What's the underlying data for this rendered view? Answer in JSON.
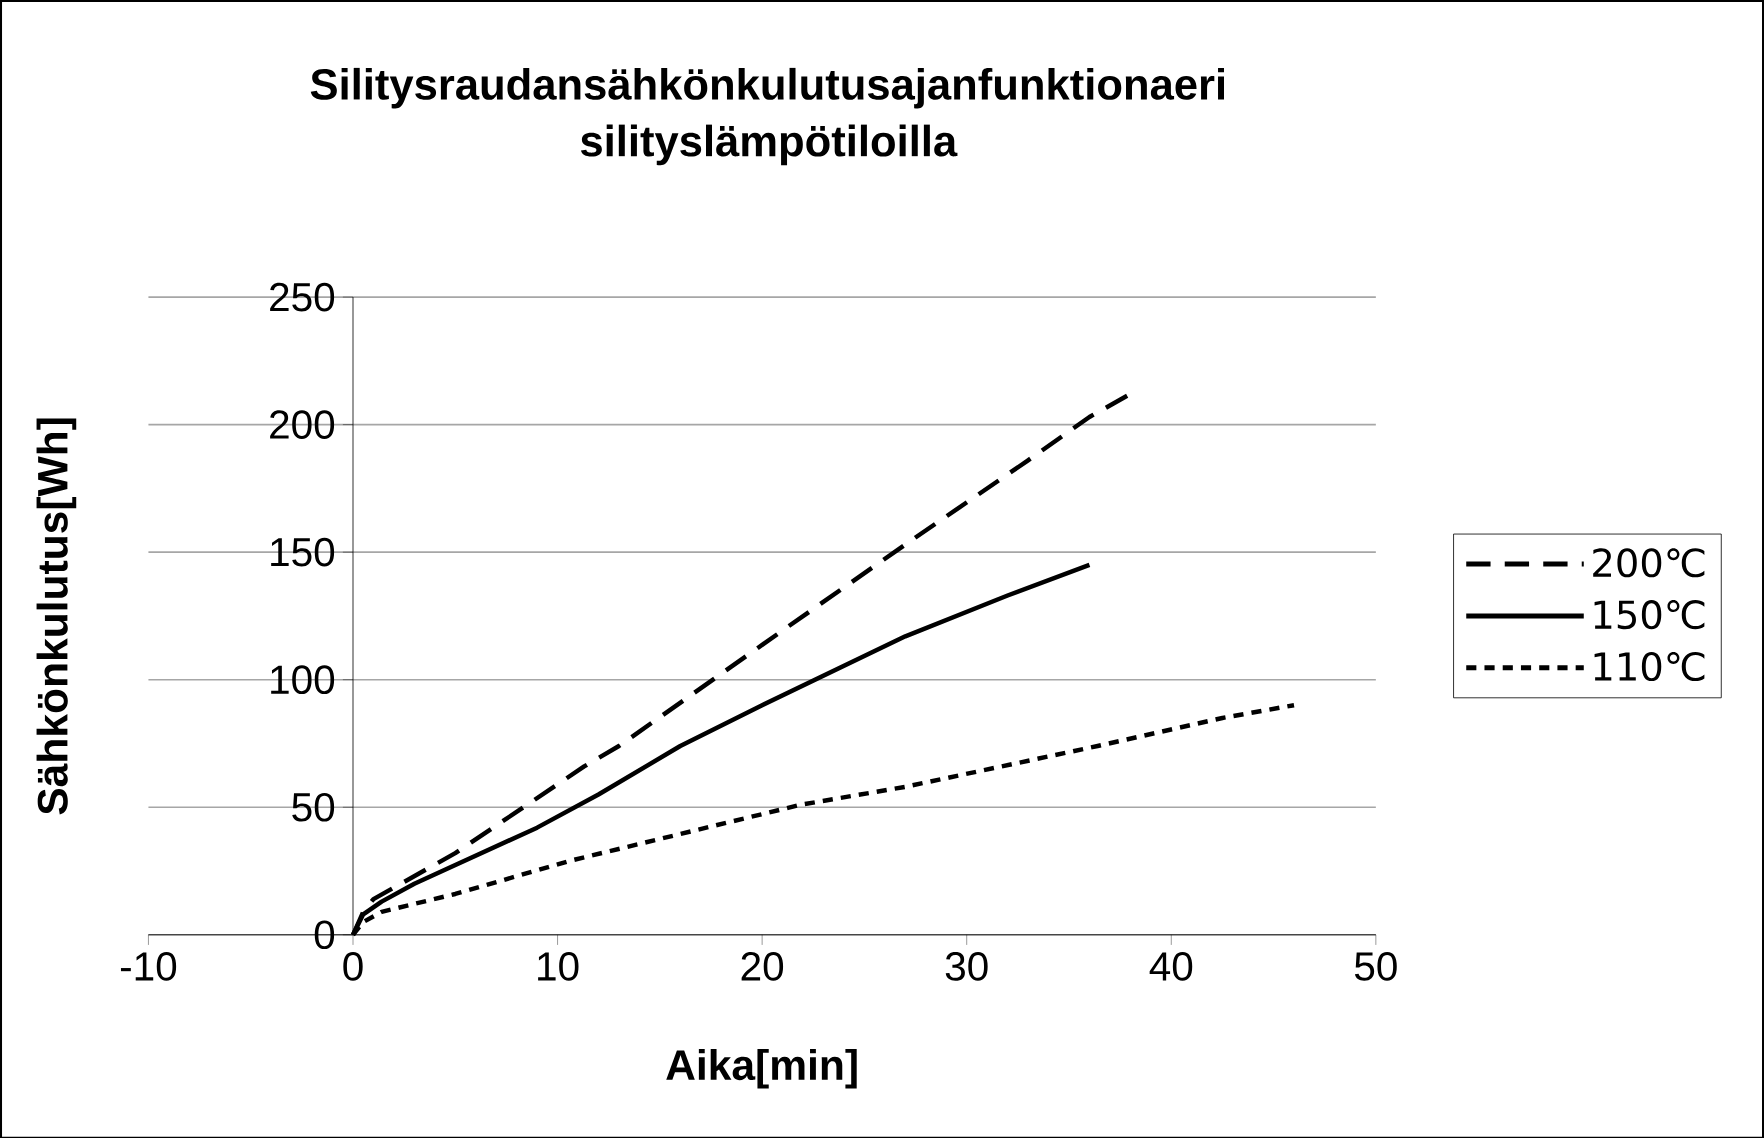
{
  "chart_data": {
    "type": "line",
    "title": "Silitysraudansähkönkulutusajanfunktionaeri silityslämpötiloilla",
    "xlabel": "Aika[min]",
    "ylabel": "Sähkönkulutus[Wh]",
    "xlim": [
      -10,
      50
    ],
    "xticks": [
      -10,
      0,
      10,
      20,
      30,
      40,
      50
    ],
    "ylim": [
      0,
      250
    ],
    "yticks": [
      0,
      50,
      100,
      150,
      200,
      250
    ],
    "grid": "y",
    "legend": "right",
    "marker": "none",
    "series": [
      {
        "name": "200℃",
        "color": "#000000",
        "line_style": "dashed",
        "x": [
          0,
          0.5,
          1,
          5,
          11.3,
          13,
          21.3,
          27,
          33,
          36,
          38
        ],
        "values": [
          0,
          9,
          14,
          32,
          66,
          74,
          121,
          153,
          186,
          203,
          212
        ]
      },
      {
        "name": "150℃",
        "color": "#000000",
        "line_style": "solid",
        "x": [
          0,
          0.5,
          1.4,
          3,
          9,
          12,
          16,
          20,
          27,
          32,
          36
        ],
        "values": [
          0,
          8,
          13,
          20,
          42,
          55,
          74,
          90,
          117,
          133,
          145
        ]
      },
      {
        "name": "110℃",
        "color": "#000000",
        "line_style": "dotted",
        "x": [
          0,
          0.5,
          1.4,
          5,
          10.6,
          21.9,
          27,
          36.4,
          42.5,
          46
        ],
        "values": [
          0,
          5,
          9,
          16,
          29,
          51,
          58,
          74,
          85,
          90
        ]
      }
    ]
  }
}
